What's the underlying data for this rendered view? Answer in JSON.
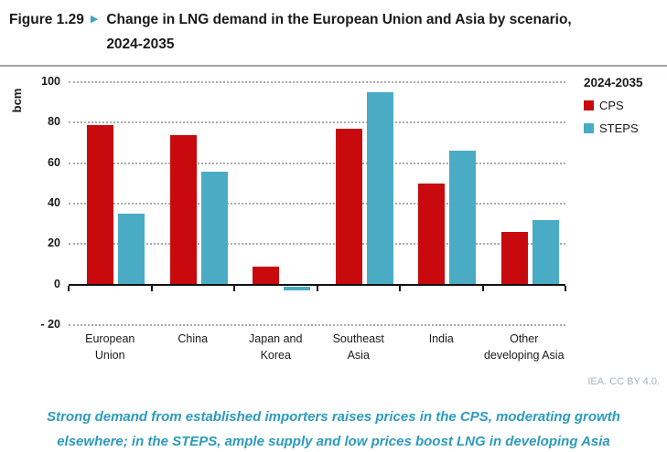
{
  "figure": {
    "label": "Figure 1.29",
    "pointer_icon": "▶",
    "title": "Change in LNG demand in the European Union and Asia by scenario, 2024-2035"
  },
  "chart_data": {
    "type": "bar",
    "unit_label": "bcm",
    "legend_title": "2024-2035",
    "legend_position": "top-right",
    "categories": [
      "European Union",
      "China",
      "Japan and Korea",
      "Southeast Asia",
      "India",
      "Other developing Asia"
    ],
    "x_label_lines": [
      [
        "European",
        "Union"
      ],
      [
        "China"
      ],
      [
        "Japan and",
        "Korea"
      ],
      [
        "Southeast",
        "Asia"
      ],
      [
        "India"
      ],
      [
        "Other",
        "developing Asia"
      ]
    ],
    "series": [
      {
        "name": "CPS",
        "color": "#C8090D",
        "values": [
          79,
          74,
          9,
          77,
          50,
          26
        ]
      },
      {
        "name": "STEPS",
        "color": "#4AABC5",
        "values": [
          35,
          56,
          -2,
          95,
          66,
          32
        ]
      }
    ],
    "ylim": [
      -20,
      100
    ],
    "yticks": [
      100,
      80,
      60,
      40,
      20,
      0,
      -20
    ],
    "grid": "dotted-horizontal"
  },
  "footer": {
    "credit": "IEA. CC BY 4.0."
  },
  "caption": "Strong demand from established importers raises prices in the CPS, moderating growth elsewhere; in the STEPS, ample supply and low prices boost LNG in developing Asia"
}
